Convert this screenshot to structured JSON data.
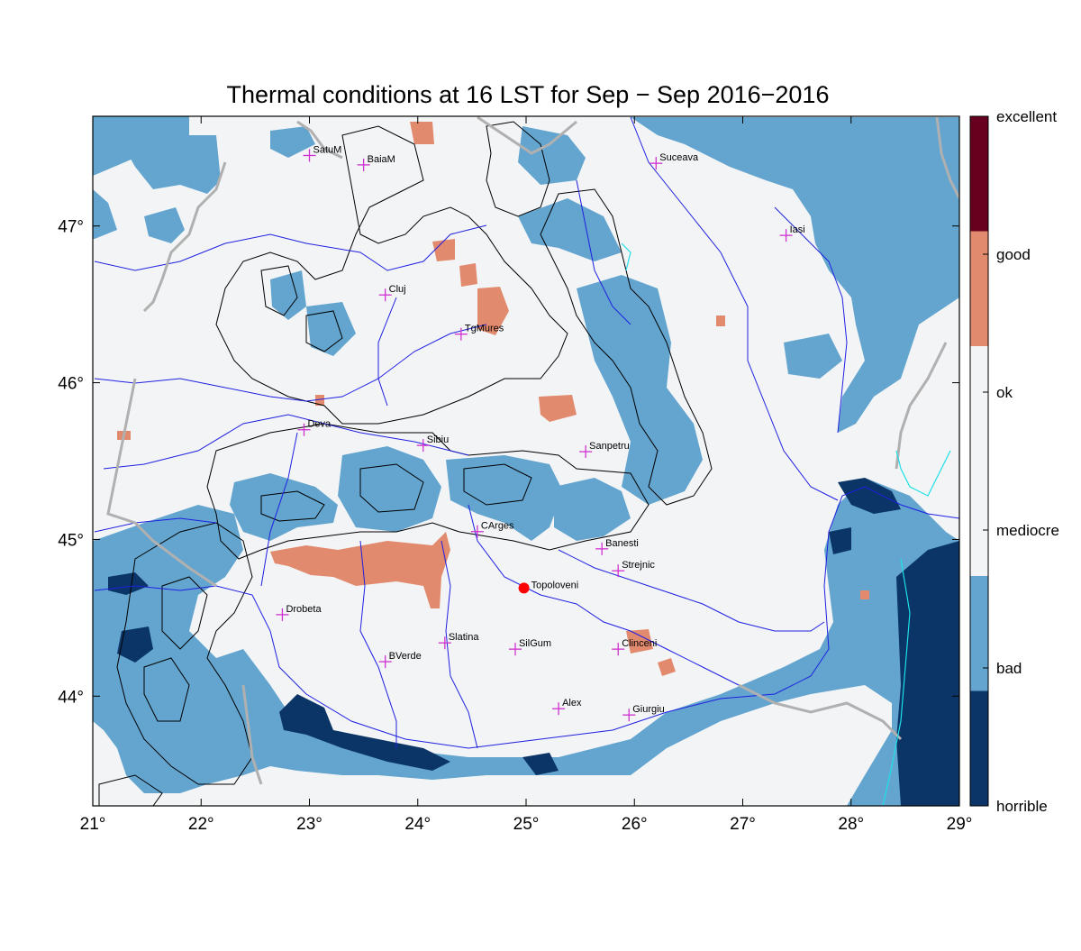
{
  "title": "Thermal conditions at 16 LST for Sep − Sep  2016−2016",
  "map": {
    "lon_range": [
      21,
      29
    ],
    "lat_range": [
      43.3,
      47.7
    ],
    "x_ticks": [
      {
        "value": 21,
        "label": "21°"
      },
      {
        "value": 22,
        "label": "22°"
      },
      {
        "value": 23,
        "label": "23°"
      },
      {
        "value": 24,
        "label": "24°"
      },
      {
        "value": 25,
        "label": "25°"
      },
      {
        "value": 26,
        "label": "26°"
      },
      {
        "value": 27,
        "label": "27°"
      },
      {
        "value": 28,
        "label": "28°"
      },
      {
        "value": 29,
        "label": "29°"
      }
    ],
    "y_ticks": [
      {
        "value": 47,
        "label": "47°"
      },
      {
        "value": 46,
        "label": "46°"
      },
      {
        "value": 45,
        "label": "45°"
      },
      {
        "value": 44,
        "label": "44°"
      }
    ]
  },
  "colors": {
    "excellent": "#67001f",
    "good": "#e28a6e",
    "ok": "#f3f4f6",
    "mediocre": "#f3f4f6",
    "bad": "#63a5cf",
    "horrible": "#0b3566",
    "river": "#1f1fe0",
    "border": "#b0b0b0",
    "contour": "#000000",
    "city_marker": "#d030d0",
    "highlight_marker": "#ff0000"
  },
  "legend": [
    "excellent",
    "good",
    "ok",
    "mediocre",
    "bad",
    "horrible"
  ],
  "cities": [
    {
      "name": "SatuM",
      "lon": 23.0,
      "lat": 47.45
    },
    {
      "name": "BaiaM",
      "lon": 23.5,
      "lat": 47.39
    },
    {
      "name": "Suceava",
      "lon": 26.2,
      "lat": 47.4
    },
    {
      "name": "Iasi",
      "lon": 27.4,
      "lat": 46.94
    },
    {
      "name": "Cluj",
      "lon": 23.7,
      "lat": 46.56
    },
    {
      "name": "TgMures",
      "lon": 24.4,
      "lat": 46.31
    },
    {
      "name": "Deva",
      "lon": 22.95,
      "lat": 45.7
    },
    {
      "name": "Sibiu",
      "lon": 24.05,
      "lat": 45.6
    },
    {
      "name": "Sanpetru",
      "lon": 25.55,
      "lat": 45.56
    },
    {
      "name": "CArges",
      "lon": 24.55,
      "lat": 45.05
    },
    {
      "name": "Banesti",
      "lon": 25.7,
      "lat": 44.94
    },
    {
      "name": "Strejnic",
      "lon": 25.85,
      "lat": 44.8
    },
    {
      "name": "Drobeta",
      "lon": 22.75,
      "lat": 44.52
    },
    {
      "name": "Slatina",
      "lon": 24.25,
      "lat": 44.34
    },
    {
      "name": "SilGum",
      "lon": 24.9,
      "lat": 44.3
    },
    {
      "name": "Clinceni",
      "lon": 25.85,
      "lat": 44.3
    },
    {
      "name": "BVerde",
      "lon": 23.7,
      "lat": 44.22
    },
    {
      "name": "Alex",
      "lon": 25.3,
      "lat": 43.92
    },
    {
      "name": "Giurgiu",
      "lon": 25.95,
      "lat": 43.88
    }
  ],
  "highlight": {
    "name": "Topoloveni",
    "lon": 24.98,
    "lat": 44.69
  }
}
